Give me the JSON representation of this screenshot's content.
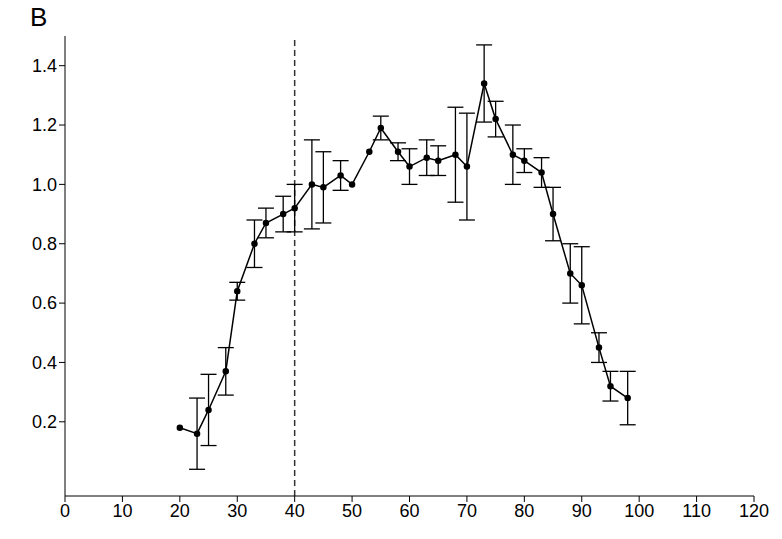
{
  "chart_data": {
    "type": "line",
    "panel_label": "B",
    "x": [
      20,
      23,
      25,
      28,
      30,
      33,
      35,
      38,
      40,
      43,
      45,
      48,
      50,
      53,
      55,
      58,
      60,
      63,
      65,
      68,
      70,
      73,
      75,
      78,
      80,
      83,
      85,
      88,
      90,
      93,
      95,
      98
    ],
    "values": [
      0.18,
      0.16,
      0.24,
      0.37,
      0.64,
      0.8,
      0.87,
      0.9,
      0.92,
      1.0,
      0.99,
      1.03,
      1.0,
      1.11,
      1.19,
      1.11,
      1.06,
      1.09,
      1.08,
      1.1,
      1.06,
      1.34,
      1.22,
      1.1,
      1.08,
      1.04,
      0.9,
      0.7,
      0.66,
      0.45,
      0.32,
      0.28
    ],
    "errors": [
      0,
      0.12,
      0.12,
      0.08,
      0.03,
      0.08,
      0.05,
      0.06,
      0.08,
      0.15,
      0.12,
      0.05,
      0,
      0,
      0.04,
      0.03,
      0.06,
      0.06,
      0.05,
      0.16,
      0.18,
      0.13,
      0.06,
      0.1,
      0.04,
      0.05,
      0.09,
      0.1,
      0.13,
      0.05,
      0.05,
      0.09
    ],
    "color": "#000000",
    "marker": "circle",
    "line_style": "solid",
    "xlim": [
      0,
      120
    ],
    "xticks": [
      0,
      10,
      20,
      30,
      40,
      50,
      60,
      70,
      80,
      90,
      100,
      110,
      120
    ],
    "ylim": [
      -0.05,
      1.5
    ],
    "yticks": [
      0.2,
      0.4,
      0.6,
      0.8,
      {
        "value": 1,
        "label": "1.0"
      },
      1.2,
      1.4
    ],
    "grid": false,
    "reference_line": {
      "x": 40
    }
  }
}
